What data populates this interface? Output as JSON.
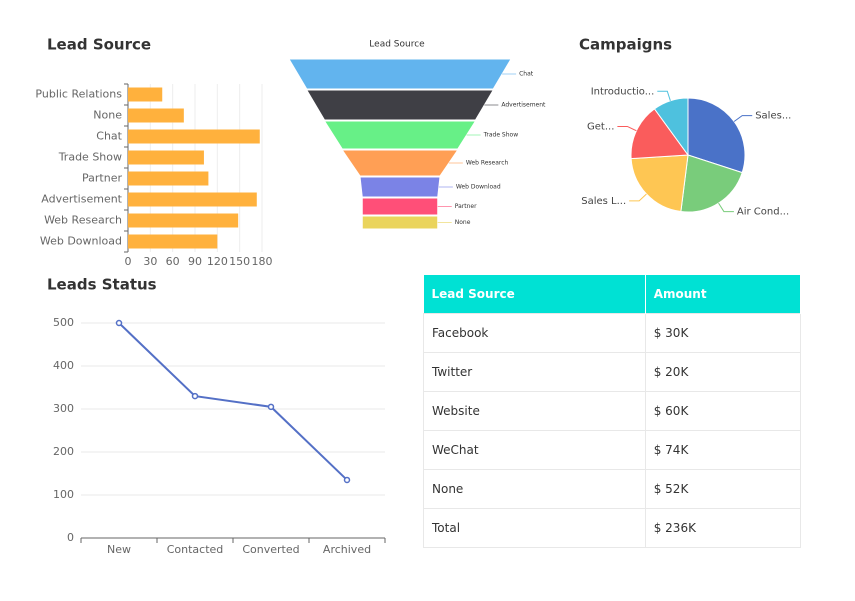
{
  "chart_data": [
    {
      "type": "bar",
      "orientation": "horizontal",
      "title": "Lead Source",
      "categories": [
        "Public Relations",
        "None",
        "Chat",
        "Trade Show",
        "Partner",
        "Advertisement",
        "Web Research",
        "Web Download"
      ],
      "values": [
        46,
        75,
        177,
        102,
        108,
        173,
        148,
        120
      ],
      "color": "#ffb13d",
      "xlim": [
        0,
        180
      ],
      "xticks": [
        0,
        30,
        60,
        90,
        120,
        150,
        180
      ],
      "grid": true
    },
    {
      "type": "funnel",
      "title": "Lead Source",
      "categories": [
        "Chat",
        "Advertisement",
        "Trade Show",
        "Web Research",
        "Web Download",
        "Partner",
        "None"
      ],
      "values": [
        100,
        84,
        68,
        52,
        36,
        34,
        34
      ],
      "colors": [
        "#62b4ee",
        "#3f3f45",
        "#67f087",
        "#ff9f55",
        "#7b83e6",
        "#ff4f78",
        "#ead45c"
      ]
    },
    {
      "type": "pie",
      "title": "Campaigns",
      "categories": [
        "Sales...",
        "Air Cond...",
        "Sales L...",
        "Get...",
        "Introductio..."
      ],
      "values": [
        30,
        22,
        22,
        16,
        10
      ],
      "colors": [
        "#4a72c8",
        "#79cc7b",
        "#fec653",
        "#fa5c5c",
        "#4ec1de"
      ]
    },
    {
      "type": "line",
      "title": "Leads Status",
      "categories": [
        "New",
        "Contacted",
        "Converted",
        "Archived"
      ],
      "values": [
        500,
        330,
        305,
        135
      ],
      "color": "#5470c6",
      "ylim": [
        0,
        500
      ],
      "yticks": [
        0,
        100,
        200,
        300,
        400,
        500
      ],
      "grid": true
    }
  ],
  "table": {
    "header": [
      "Lead Source",
      "Amount"
    ],
    "rows": [
      [
        "Facebook",
        "$ 30K"
      ],
      [
        "Twitter",
        "$ 20K"
      ],
      [
        "Website",
        "$ 60K"
      ],
      [
        "WeChat",
        "$ 74K"
      ],
      [
        "None",
        "$ 52K"
      ],
      [
        "Total",
        "$ 236K"
      ]
    ]
  }
}
